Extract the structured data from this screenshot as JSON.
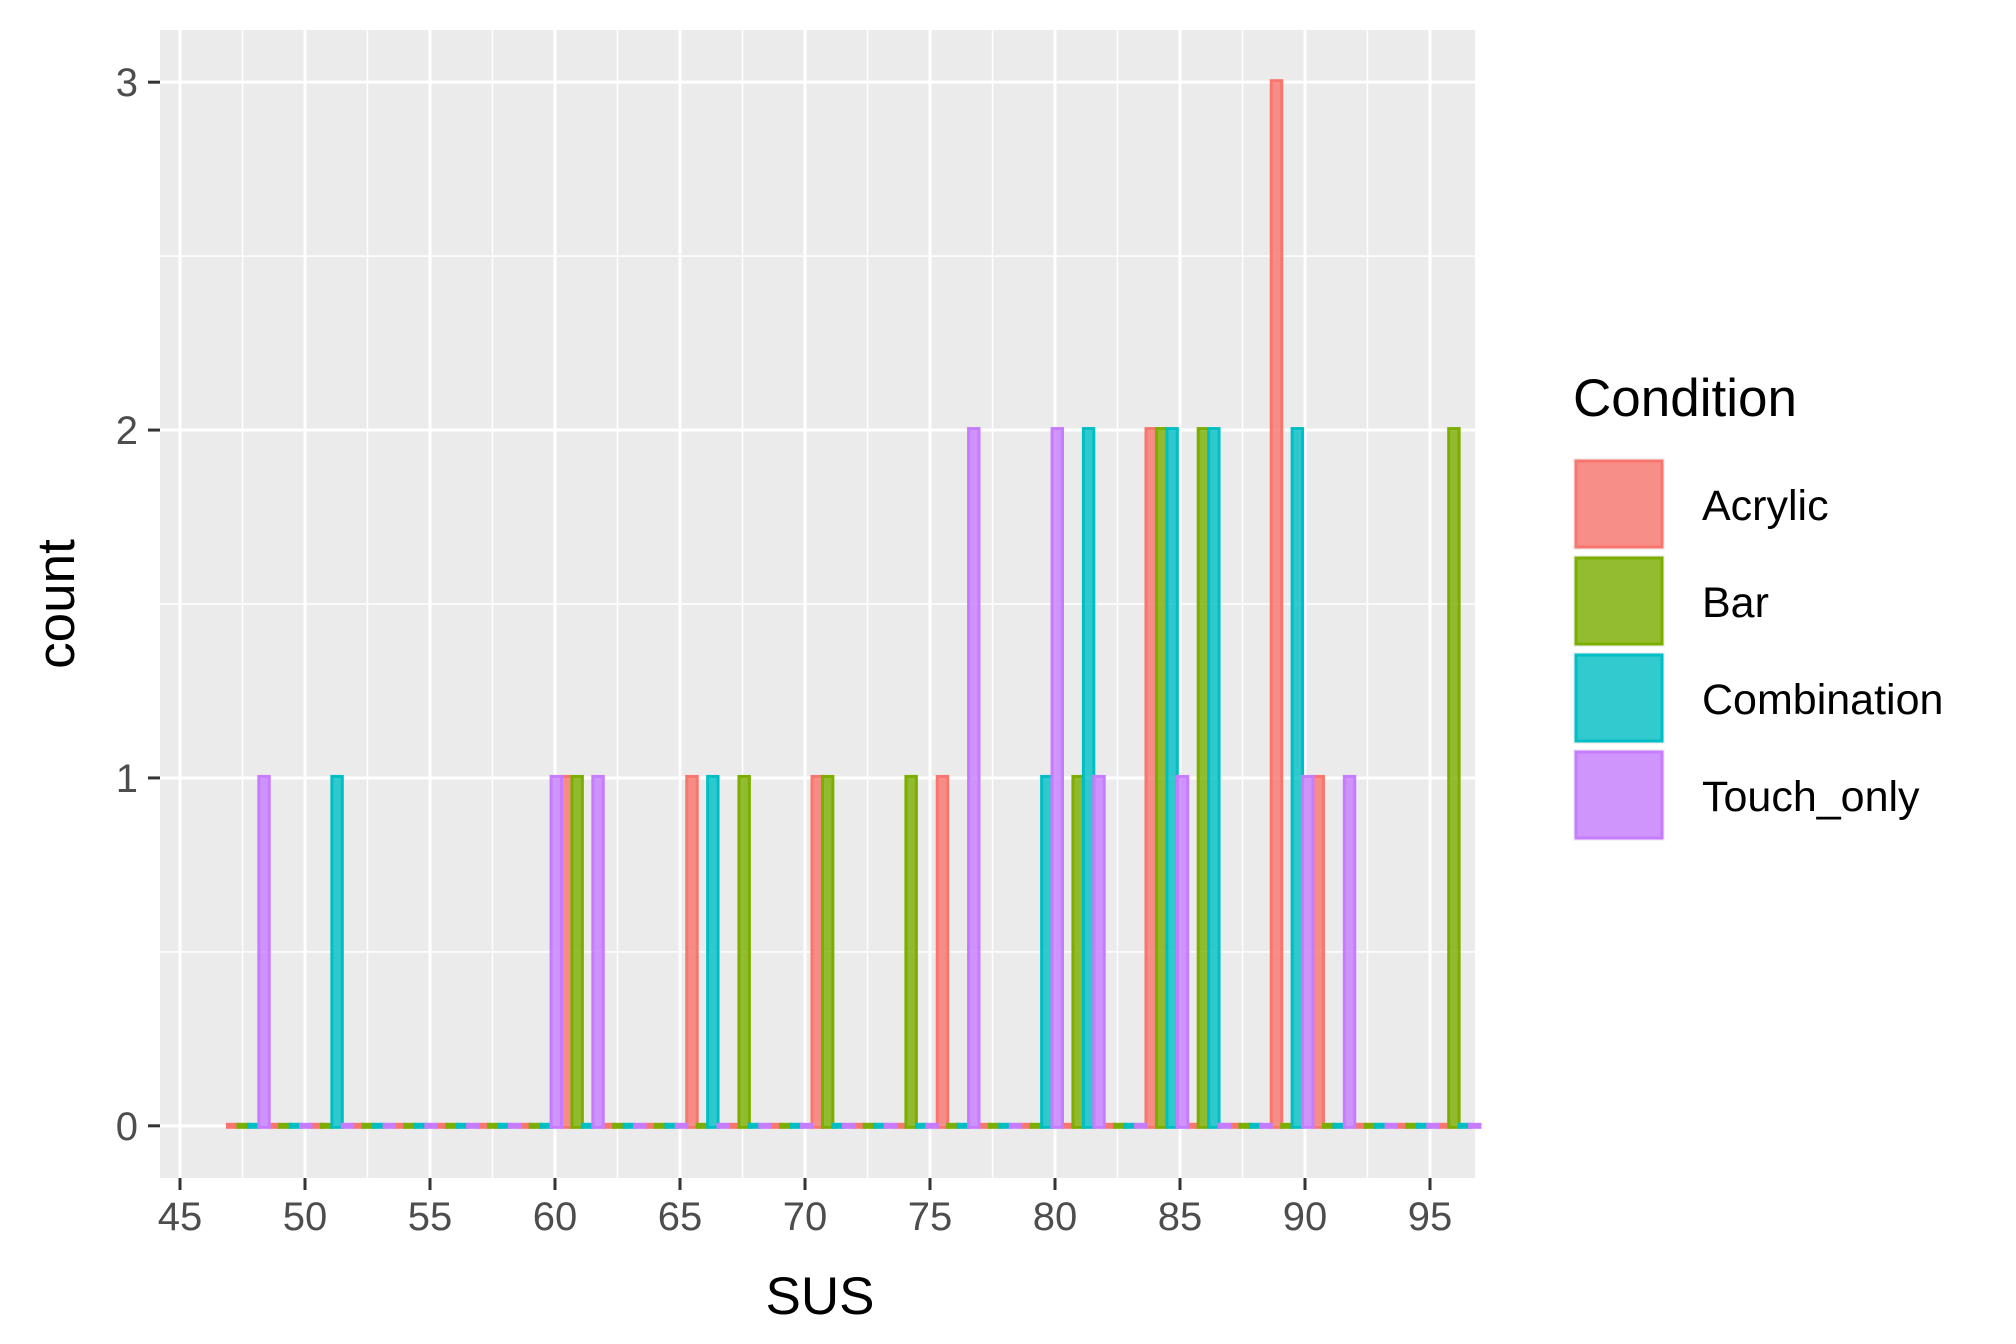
{
  "chart_data": {
    "type": "bar",
    "subtype": "histogram-dodged",
    "xlabel": "SUS",
    "ylabel": "count",
    "xlim": [
      44.2,
      96.8
    ],
    "ylim": [
      -0.15,
      3.15
    ],
    "x_ticks": [
      45,
      50,
      55,
      60,
      65,
      70,
      75,
      80,
      85,
      90,
      95
    ],
    "y_ticks": [
      0,
      1,
      2,
      3
    ],
    "grid": true,
    "legend_position": "right",
    "legend_title": "Condition",
    "bin_width": 1.67,
    "bin_start": 46.9,
    "bin_count": 30,
    "series": [
      {
        "name": "Acrylic",
        "color": "#F8766D",
        "values": [
          0,
          0,
          0,
          0,
          0,
          0,
          0,
          0,
          1,
          0,
          0,
          1,
          0,
          0,
          1,
          0,
          0,
          1,
          0,
          0,
          0,
          0,
          2,
          0,
          0,
          3,
          1,
          0,
          0,
          0
        ]
      },
      {
        "name": "Bar",
        "color": "#7CAE00",
        "values": [
          0,
          0,
          0,
          0,
          0,
          0,
          0,
          0,
          1,
          0,
          0,
          0,
          1,
          0,
          1,
          0,
          1,
          0,
          0,
          0,
          1,
          0,
          2,
          2,
          0,
          0,
          0,
          0,
          0,
          2
        ]
      },
      {
        "name": "Combination",
        "color": "#00BFC4",
        "values": [
          0,
          0,
          1,
          0,
          0,
          0,
          0,
          0,
          0,
          0,
          0,
          1,
          0,
          0,
          0,
          0,
          0,
          0,
          0,
          1,
          2,
          0,
          2,
          2,
          0,
          2,
          0,
          0,
          0,
          0
        ]
      },
      {
        "name": "Touch_only",
        "color": "#C77CFF",
        "values": [
          1,
          0,
          0,
          0,
          0,
          0,
          0,
          1,
          1,
          0,
          0,
          0,
          0,
          0,
          0,
          0,
          0,
          2,
          0,
          2,
          1,
          0,
          1,
          0,
          0,
          1,
          1,
          0,
          0,
          0
        ]
      }
    ]
  }
}
